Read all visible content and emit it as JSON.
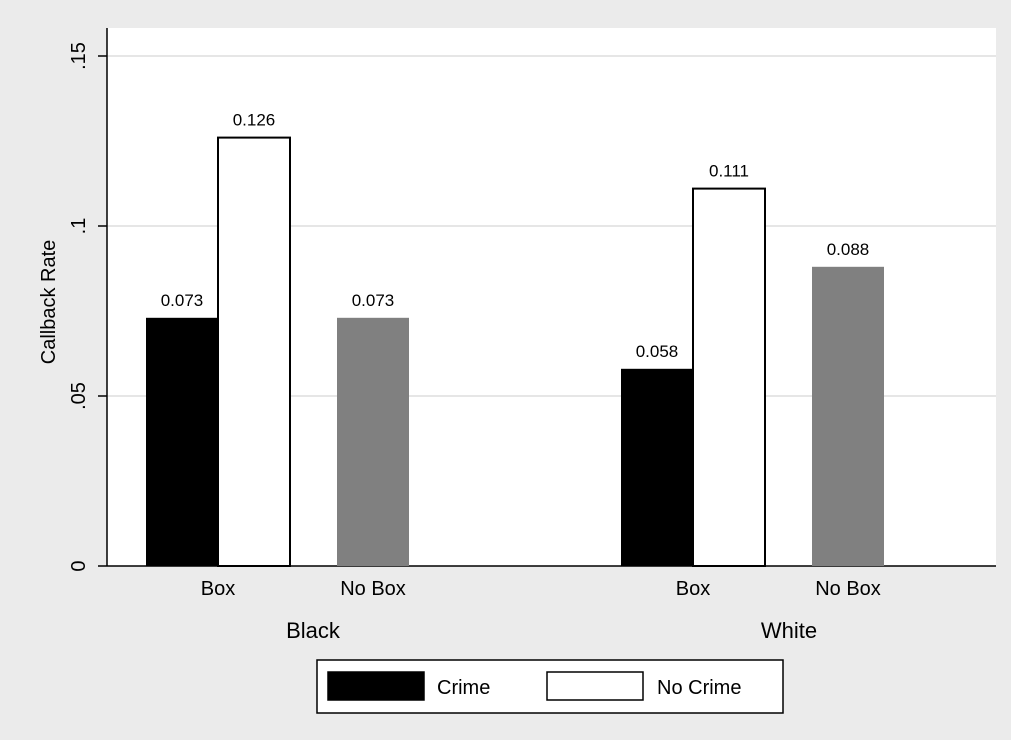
{
  "chart_data": {
    "type": "bar",
    "ylabel": "Callback Rate",
    "ylim": [
      0,
      0.15
    ],
    "yticks": [
      {
        "value": 0,
        "label": "0"
      },
      {
        "value": 0.05,
        "label": ".05"
      },
      {
        "value": 0.1,
        "label": ".1"
      },
      {
        "value": 0.15,
        "label": ".15"
      }
    ],
    "grid": true,
    "groups": [
      {
        "name": "Black",
        "categories": [
          {
            "label": "Box",
            "bars": [
              {
                "series": "Crime",
                "value": 0.073,
                "label": "0.073"
              },
              {
                "series": "No Crime",
                "value": 0.126,
                "label": "0.126"
              }
            ]
          },
          {
            "label": "No Box",
            "bars": [
              {
                "series": "No Box",
                "value": 0.073,
                "label": "0.073"
              }
            ]
          }
        ]
      },
      {
        "name": "White",
        "categories": [
          {
            "label": "Box",
            "bars": [
              {
                "series": "Crime",
                "value": 0.058,
                "label": "0.058"
              },
              {
                "series": "No Crime",
                "value": 0.111,
                "label": "0.111"
              }
            ]
          },
          {
            "label": "No Box",
            "bars": [
              {
                "series": "No Box",
                "value": 0.088,
                "label": "0.088"
              }
            ]
          }
        ]
      }
    ],
    "legend": {
      "placement": "bottom",
      "entries": [
        {
          "name": "Crime",
          "color": "#000000"
        },
        {
          "name": "No Crime",
          "color": "#ffffff"
        }
      ]
    },
    "colors": {
      "Crime": "#000000",
      "No Crime": "#ffffff",
      "No Box": "#808080",
      "background": "#ebebeb",
      "plot": "#ffffff",
      "grid": "#e6e6e6"
    }
  }
}
